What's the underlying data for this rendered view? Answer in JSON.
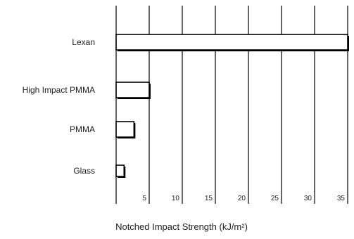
{
  "chart_data": {
    "type": "bar",
    "orientation": "horizontal",
    "categories": [
      "Lexan",
      "High Impact PMMA",
      "PMMA",
      "Glass"
    ],
    "values": [
      35,
      5,
      2.7,
      1.2
    ],
    "xlabel": "Notched Impact Strength (kJ/m²)",
    "ylabel": "",
    "xlim": [
      0,
      35
    ],
    "xticks": [
      5,
      10,
      15,
      20,
      25,
      30,
      35
    ],
    "tick_labels": [
      "5",
      "10",
      "15",
      "20",
      "25",
      "30",
      "35"
    ],
    "grid": "vertical",
    "legend": "none"
  },
  "colors": {
    "bar_fill": "#ffffff",
    "bar_outline": "#000000",
    "grid": "#000000",
    "text": "#222222"
  }
}
